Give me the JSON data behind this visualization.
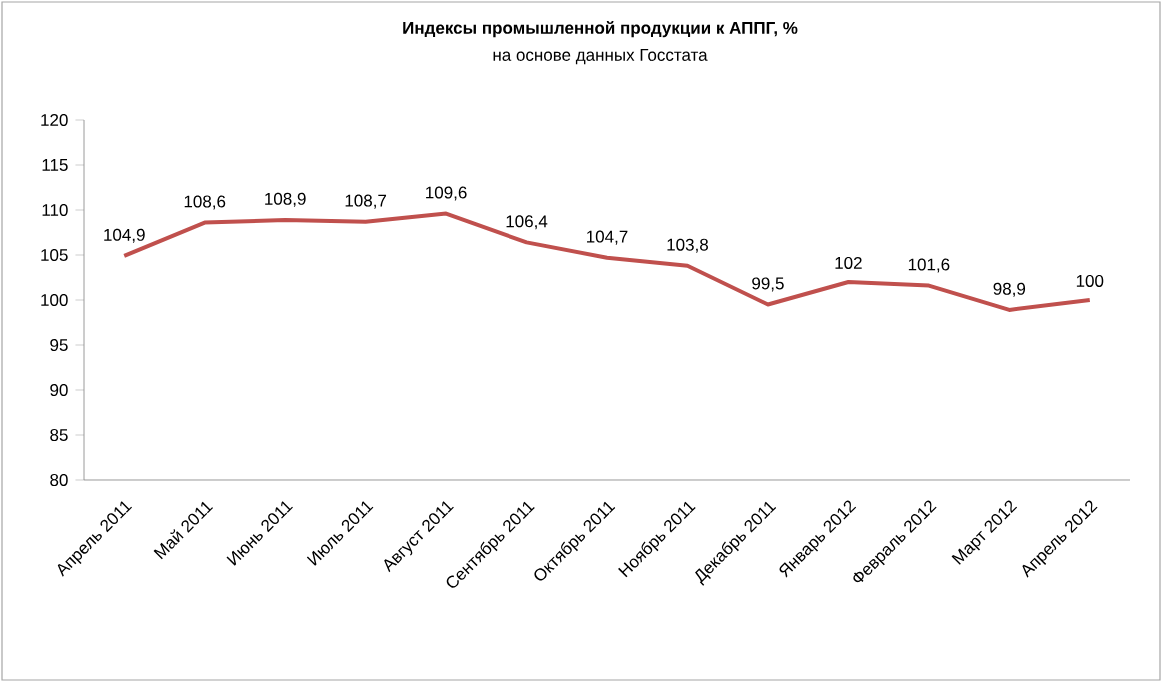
{
  "chart_data": {
    "type": "line",
    "title": "Индексы промышленной продукции к АППГ, %",
    "subtitle": "на основе данных Госстата",
    "categories": [
      "Апрель 2011",
      "Май 2011",
      "Июнь 2011",
      "Июль 2011",
      "Август 2011",
      "Сентябрь 2011",
      "Октябрь 2011",
      "Ноябрь 2011",
      "Декабрь 2011",
      "Январь 2012",
      "Февраль 2012",
      "Март 2012",
      "Апрель 2012"
    ],
    "series": [
      {
        "color": "#c0504d",
        "values": [
          104.9,
          108.6,
          108.9,
          108.7,
          109.6,
          106.4,
          104.7,
          103.8,
          99.5,
          102,
          101.6,
          98.9,
          100
        ],
        "value_labels": [
          "104,9",
          "108,6",
          "108,9",
          "108,7",
          "109,6",
          "106,4",
          "104,7",
          "103,8",
          "99,5",
          "102",
          "101,6",
          "98,9",
          "100"
        ]
      }
    ],
    "ylim": [
      80,
      120
    ],
    "yticks": [
      80,
      85,
      90,
      95,
      100,
      105,
      110,
      115,
      120
    ],
    "grid": false,
    "line_style": "solid"
  }
}
